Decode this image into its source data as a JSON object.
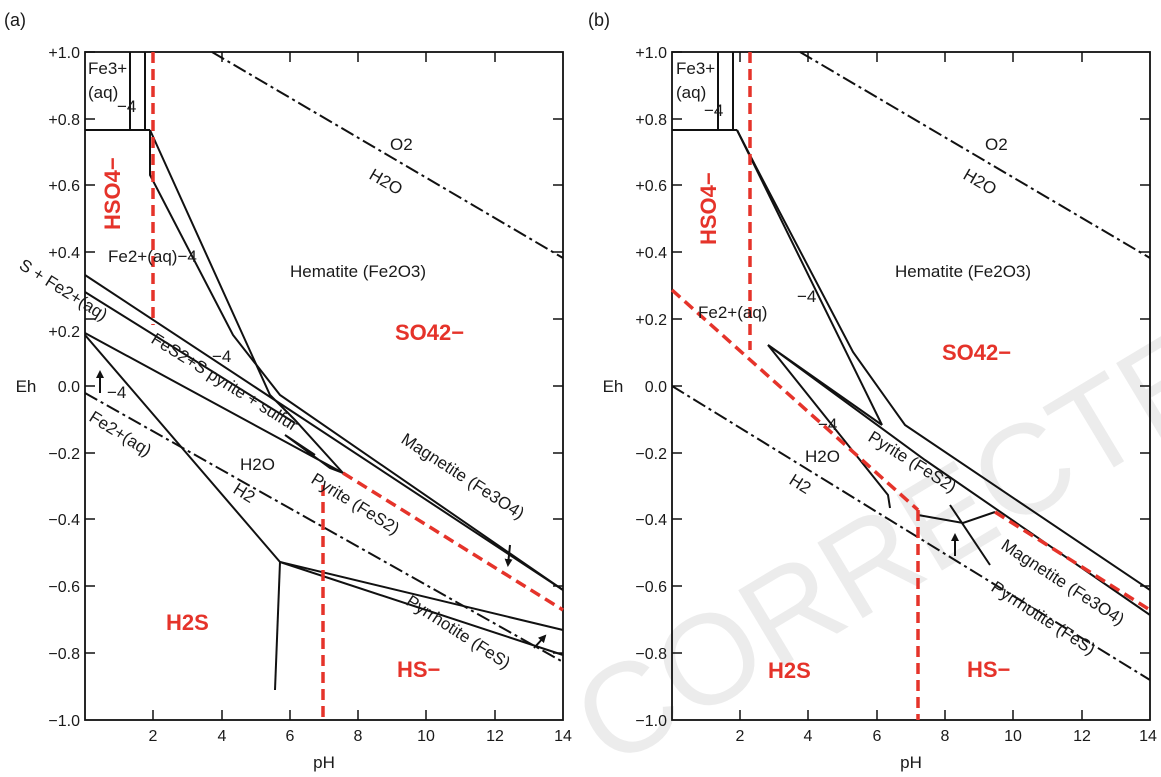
{
  "watermark": "CORRECTED PROOF",
  "axes": {
    "x_title": "pH",
    "y_title": "Eh",
    "x_ticks": [
      "2",
      "4",
      "6",
      "8",
      "10",
      "12",
      "14"
    ],
    "y_ticks": [
      "+1.0",
      "+0.8",
      "+0.6",
      "+0.4",
      "+0.2",
      "0.0",
      "−0.2",
      "−0.4",
      "−0.6",
      "−0.8",
      "−1.0"
    ]
  },
  "panel_a": {
    "label": "(a)",
    "hso4": "HSO4−",
    "so4": "SO42−",
    "h2s": "H2S",
    "hs": "HS−",
    "fe3": "Fe3+",
    "aq": "(aq)",
    "minus4": "−4",
    "fe2_upper": "Fe2+(aq)−4",
    "s_fe2": "S + Fe2+(aq)",
    "fes2_s": "FeS2+S pyrite + sulfur",
    "fe2_lower": "Fe2+(aq)",
    "hematite": "Hematite (Fe2O3)",
    "o2": "O2",
    "h2o_top": "H2O",
    "h2o_bottom": "H2O",
    "h2": "H2",
    "pyrite": "Pyrite (FeS2)",
    "magnetite": "Magnetite (Fe3O4)",
    "pyrrhotite": "Pyrrhotite (FeS)"
  },
  "panel_b": {
    "label": "(b)",
    "hso4": "HSO4−",
    "so4": "SO42−",
    "h2s": "H2S",
    "hs": "HS−",
    "fe3": "Fe3+",
    "aq": "(aq)",
    "minus4": "−4",
    "fe2": "Fe2+(aq)",
    "hematite": "Hematite (Fe2O3)",
    "o2": "O2",
    "h2o_top": "H2O",
    "h2o_bottom": "H2O",
    "h2": "H2",
    "pyrite": "Pyrite (FeS2)",
    "magnetite": "Magnetite (Fe3O4)",
    "pyrrhotite": "Pyrrhotite (FeS)"
  }
}
